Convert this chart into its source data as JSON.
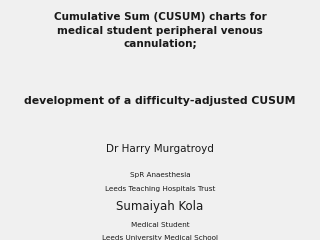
{
  "background_color": "#f0f0f0",
  "title_line1": "Cumulative Sum (CUSUM) charts for",
  "title_line2": "medical student peripheral venous",
  "title_line3": "cannulation;",
  "subtitle_line1": "development of a difficulty-adjusted CUSUM",
  "author1_name": "Dr Harry Murgatroyd",
  "author1_role": "SpR Anaesthesia",
  "author1_affil": "Leeds Teaching Hospitals Trust",
  "author2_name": "Sumaiyah Kola",
  "author2_role": "Medical Student",
  "author2_affil": "Leeds University Medical School",
  "title_fontsize": 7.5,
  "subtitle_fontsize": 7.8,
  "author1_name_fontsize": 7.5,
  "author_role_fontsize": 5.2,
  "author2_name_fontsize": 8.5,
  "text_color": "#1a1a1a"
}
